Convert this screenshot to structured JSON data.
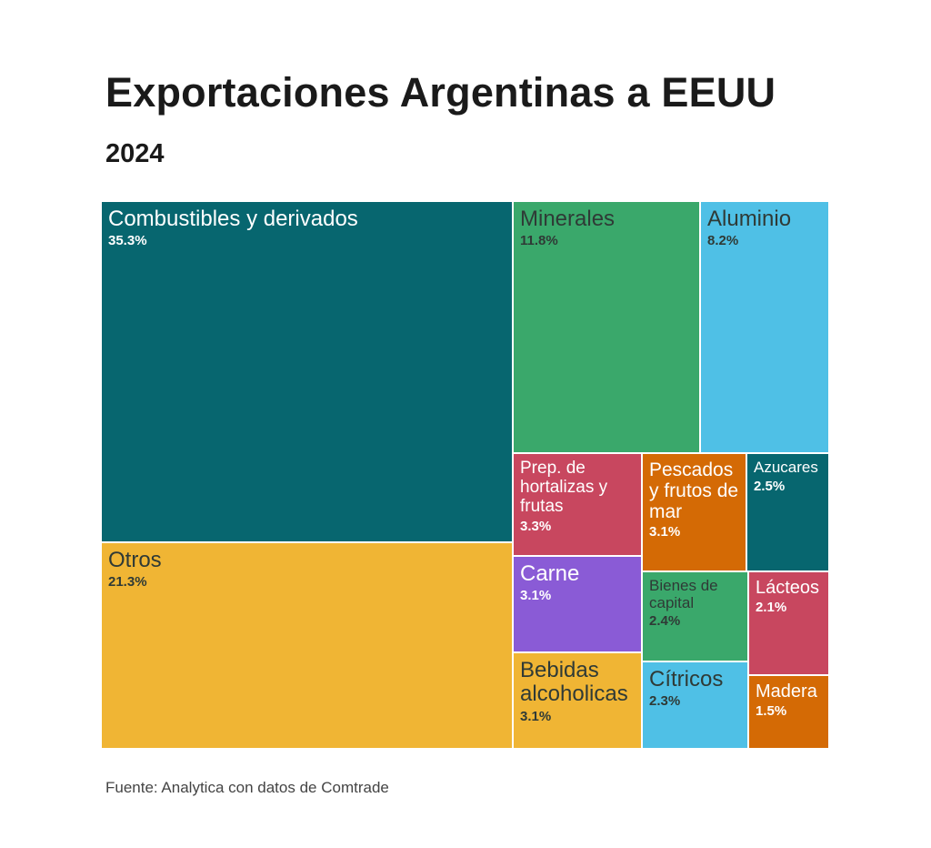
{
  "title": "Exportaciones Argentinas a EEUU",
  "subtitle": "2024",
  "source": "Fuente: Analytica con datos de Comtrade",
  "chart_data": {
    "type": "treemap",
    "title": "Exportaciones Argentinas a EEUU",
    "subtitle": "2024",
    "unit": "%",
    "items": [
      {
        "name": "Combustibles y derivados",
        "value": 35.3,
        "label": "35.3%",
        "color": "#07666f"
      },
      {
        "name": "Otros",
        "value": 21.3,
        "label": "21.3%",
        "color": "#f0b534"
      },
      {
        "name": "Minerales",
        "value": 11.8,
        "label": "11.8%",
        "color": "#3aa86b"
      },
      {
        "name": "Aluminio",
        "value": 8.2,
        "label": "8.2%",
        "color": "#4fc0e6"
      },
      {
        "name": "Prep. de hortalizas y frutas",
        "value": 3.3,
        "label": "3.3%",
        "color": "#c8475f"
      },
      {
        "name": "Carne",
        "value": 3.1,
        "label": "3.1%",
        "color": "#8a5bd6"
      },
      {
        "name": "Bebidas alcoholicas",
        "value": 3.1,
        "label": "3.1%",
        "color": "#f0b534"
      },
      {
        "name": "Pescados y frutos de mar",
        "value": 3.1,
        "label": "3.1%",
        "color": "#d46a05"
      },
      {
        "name": "Azucares",
        "value": 2.5,
        "label": "2.5%",
        "color": "#07666f"
      },
      {
        "name": "Bienes de capital",
        "value": 2.4,
        "label": "2.4%",
        "color": "#3aa86b"
      },
      {
        "name": "Cítricos",
        "value": 2.3,
        "label": "2.3%",
        "color": "#4fc0e6"
      },
      {
        "name": "Lácteos",
        "value": 2.1,
        "label": "2.1%",
        "color": "#c8475f"
      },
      {
        "name": "Madera",
        "value": 1.5,
        "label": "1.5%",
        "color": "#d46a05"
      }
    ]
  }
}
